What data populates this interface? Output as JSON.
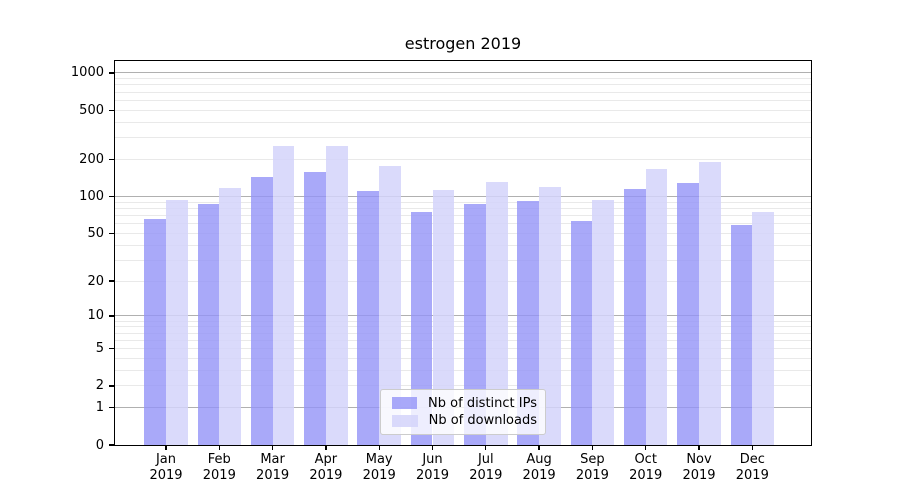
{
  "chart_data": {
    "type": "bar",
    "title": "estrogen 2019",
    "year": "2019",
    "months": [
      "Jan",
      "Feb",
      "Mar",
      "Apr",
      "May",
      "Jun",
      "Jul",
      "Aug",
      "Sep",
      "Oct",
      "Nov",
      "Dec"
    ],
    "categories": [
      "Jan 2019",
      "Feb 2019",
      "Mar 2019",
      "Apr 2019",
      "May 2019",
      "Jun 2019",
      "Jul 2019",
      "Aug 2019",
      "Sep 2019",
      "Oct 2019",
      "Nov 2019",
      "Dec 2019"
    ],
    "series": [
      {
        "name": "Nb of distinct IPs",
        "color": "rgba(147,147,248,0.8)",
        "values": [
          65,
          87,
          145,
          158,
          111,
          75,
          87,
          91,
          63,
          114,
          128,
          59
        ]
      },
      {
        "name": "Nb of downloads",
        "color": "rgba(211,211,250,0.85)",
        "values": [
          94,
          117,
          258,
          255,
          177,
          113,
          130,
          119,
          94,
          167,
          189,
          75
        ]
      }
    ],
    "yscale": "log1p",
    "ylim": [
      0,
      1258
    ],
    "y_ticks": [
      0,
      1,
      2,
      5,
      10,
      20,
      50,
      100,
      200,
      500,
      1000
    ],
    "y_major_gridlines": [
      1,
      10,
      100,
      1000
    ],
    "grid": "both",
    "legend_position": "lower center",
    "colors": {
      "grid_major": "#b0b0b0",
      "grid_minor": "#e9e9e9",
      "spine": "#000000",
      "background": "#ffffff"
    }
  }
}
